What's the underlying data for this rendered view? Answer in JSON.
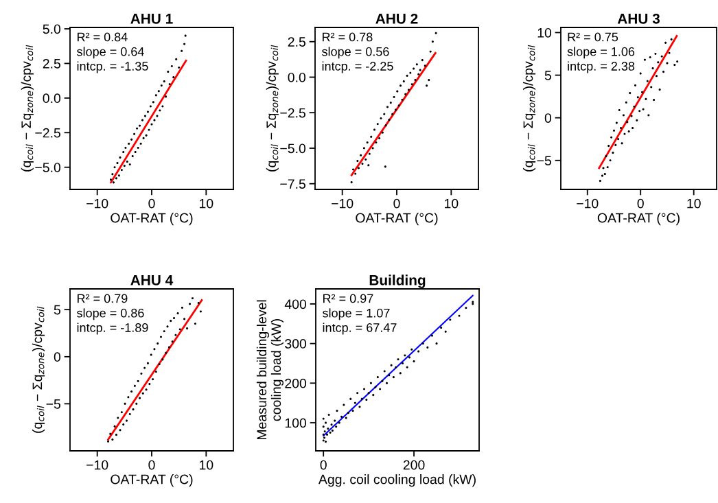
{
  "chart_data": [
    {
      "type": "scatter",
      "title": "AHU 1",
      "xlabel": "OAT-RAT (°C)",
      "ylabel": "(q$_{coil}$ − Σq$_{zone}$)/cpv$_{coil}$",
      "xlim": [
        -15,
        15
      ],
      "xticks": [
        -10,
        0,
        10
      ],
      "ylim": [
        -6.6,
        5.1
      ],
      "yticks": [
        {
          "value": -5,
          "label": "−5.0"
        },
        {
          "value": -2.5,
          "label": "−2.5"
        },
        {
          "value": 0,
          "label": "0.0"
        },
        2.5,
        {
          "value": 5,
          "label": "5.0"
        }
      ],
      "grid": false,
      "annotations": [
        "R² = 0.84",
        "slope = 0.64",
        "intcp. = -1.35"
      ],
      "series": [
        {
          "marker": "circle",
          "color": "#000000",
          "x": [
            -7.5,
            -7.2,
            -7,
            -6.8,
            -6.5,
            -6.3,
            -6,
            -5.8,
            -5.5,
            -5.2,
            -5,
            -4.8,
            -4.5,
            -4.2,
            -4,
            -3.7,
            -3.5,
            -3.2,
            -3,
            -2.7,
            -2.5,
            -2.2,
            -2,
            -1.7,
            -1.5,
            -1.2,
            -1,
            -0.7,
            -0.5,
            -0.2,
            0,
            0.3,
            0.5,
            0.8,
            1,
            1.3,
            1.5,
            1.8,
            2,
            2.3,
            2.6,
            3,
            3.3,
            3.7,
            4,
            4.5,
            5,
            5.5,
            6,
            6.2
          ],
          "values": [
            -5.9,
            -5.5,
            -6.1,
            -5.0,
            -5.8,
            -4.7,
            -5.6,
            -4.3,
            -5.2,
            -3.9,
            -4.9,
            -3.6,
            -4.6,
            -3.3,
            -4.8,
            -3.0,
            -4.2,
            -2.6,
            -3.9,
            -2.2,
            -3.6,
            -2.0,
            -3.3,
            -1.6,
            -2.9,
            -1.3,
            -2.7,
            -1.0,
            -2.3,
            -0.6,
            -1.9,
            -0.3,
            -1.6,
            0.2,
            -1.3,
            0.5,
            -0.9,
            0.9,
            -0.6,
            1.2,
            0.1,
            1.9,
            1.0,
            2.3,
            1.5,
            2.8,
            2.2,
            3.4,
            3.9,
            4.5
          ]
        },
        {
          "type": "line",
          "color": "#ff0000",
          "x": [
            -7.5,
            6.3
          ],
          "values": [
            -6.1,
            2.7
          ]
        }
      ]
    },
    {
      "type": "scatter",
      "title": "AHU 2",
      "xlabel": "OAT-RAT (°C)",
      "ylabel": "(q$_{coil}$ − Σq$_{zone}$)/cpv$_{coil}$",
      "xlim": [
        -15,
        15
      ],
      "xticks": [
        -10,
        0,
        10
      ],
      "ylim": [
        -7.9,
        3.5
      ],
      "yticks": [
        {
          "value": -7.5,
          "label": "−7.5"
        },
        {
          "value": -5,
          "label": "−5.0"
        },
        {
          "value": -2.5,
          "label": "−2.5"
        },
        {
          "value": 0,
          "label": "0.0"
        },
        2.5
      ],
      "grid": false,
      "annotations": [
        "R² = 0.78",
        "slope = 0.56",
        "intcp. = -2.25"
      ],
      "series": [
        {
          "marker": "circle",
          "color": "#000000",
          "x": [
            -8.3,
            -8,
            -7.6,
            -7.2,
            -7,
            -6.6,
            -6.3,
            -6,
            -5.7,
            -5.4,
            -5,
            -4.7,
            -4.4,
            -4.1,
            -3.8,
            -3.5,
            -3.2,
            -2.9,
            -2.6,
            -2.3,
            -2,
            -1.7,
            -1.4,
            -1.1,
            -0.8,
            -0.5,
            -0.2,
            0.1,
            0.4,
            0.7,
            1,
            1.3,
            1.6,
            1.9,
            2.2,
            2.5,
            2.8,
            3.1,
            3.4,
            3.7,
            4,
            4.3,
            4.7,
            5.2,
            5.5,
            5.9,
            6.2,
            6.6,
            7.2,
            -2.1,
            -5.2
          ],
          "values": [
            -7.4,
            -6.5,
            -6.8,
            -5.9,
            -6.4,
            -5.5,
            -6.1,
            -5.0,
            -5.8,
            -4.6,
            -5.4,
            -4.2,
            -5.0,
            -3.7,
            -4.6,
            -3.3,
            -4.3,
            -2.9,
            -3.9,
            -2.6,
            -3.4,
            -2.1,
            -3.0,
            -1.8,
            -2.6,
            -1.4,
            -2.3,
            -1.0,
            -2.0,
            -0.6,
            -1.6,
            -0.3,
            -1.2,
            0.1,
            -0.9,
            0.3,
            -0.5,
            0.6,
            -0.2,
            0.9,
            0.2,
            0.5,
            1.2,
            0.8,
            -0.6,
            -0.2,
            1.8,
            2.5,
            3.1,
            -6.3,
            -6.2
          ]
        },
        {
          "type": "line",
          "color": "#ff0000",
          "x": [
            -8.3,
            7.1
          ],
          "values": [
            -6.9,
            1.7
          ]
        }
      ]
    },
    {
      "type": "scatter",
      "title": "AHU 3",
      "xlabel": "OAT-RAT (°C)",
      "ylabel": "(q$_{coil}$ − Σq$_{zone}$)/cpv$_{coil}$",
      "xlim": [
        -15,
        14.3
      ],
      "xticks": [
        -10,
        0,
        10
      ],
      "ylim": [
        -8.4,
        10.6
      ],
      "yticks": [
        -5,
        0,
        5,
        10
      ],
      "grid": false,
      "annotations": [
        "R² = 0.75",
        "slope = 1.06",
        "intcp. = 2.38"
      ],
      "series": [
        {
          "marker": "circle",
          "color": "#000000",
          "x": [
            -7.6,
            -7.2,
            -7,
            -6.7,
            -6.5,
            -6.2,
            -6,
            -5.7,
            -5.5,
            -5.2,
            -5,
            -4.7,
            -4.5,
            -4.2,
            -4,
            -3.7,
            -3.5,
            -3.2,
            -3,
            -2.7,
            -2.5,
            -2.2,
            -2,
            -1.7,
            -1.5,
            -1.2,
            -1,
            -0.7,
            -0.5,
            -0.2,
            0,
            0.3,
            0.5,
            0.8,
            1,
            1.3,
            1.5,
            1.8,
            2,
            2.3,
            2.5,
            2.8,
            3,
            3.3,
            3.6,
            4,
            4.3,
            4.7,
            5,
            5.4,
            5.8,
            6.4,
            6.9
          ],
          "values": [
            -7.4,
            -6.8,
            -5.9,
            -6.6,
            -4.5,
            -5.8,
            -3.3,
            -5.0,
            -2.3,
            -4.1,
            -1.5,
            -3.2,
            -0.6,
            -2.5,
            0.9,
            -1.2,
            -3.0,
            0.3,
            -1.9,
            1.8,
            -0.5,
            -1.6,
            2.9,
            0.2,
            -1.2,
            1.3,
            3.8,
            -0.3,
            2.4,
            0.8,
            5.2,
            3.0,
            1.0,
            6.8,
            2.2,
            4.3,
            0.3,
            7.1,
            3.6,
            5.8,
            2.1,
            7.5,
            4.9,
            6.5,
            3.3,
            7.2,
            5.4,
            8.8,
            6.4,
            7.6,
            9.2,
            6.2,
            6.6
          ]
        },
        {
          "type": "line",
          "color": "#ff0000",
          "x": [
            -7.8,
            6.8
          ],
          "values": [
            -5.9,
            9.6
          ]
        }
      ]
    },
    {
      "type": "scatter",
      "title": "AHU 4",
      "xlabel": "OAT-RAT (°C)",
      "ylabel": "(q$_{coil}$ − Σq$_{zone}$)/cpv$_{coil}$",
      "xlim": [
        -15,
        15
      ],
      "xticks": [
        -10,
        0,
        10
      ],
      "ylim": [
        -10,
        7.2
      ],
      "yticks": [
        -5,
        0,
        5
      ],
      "grid": false,
      "annotations": [
        "R² = 0.79",
        "slope = 0.86",
        "intcp. = -1.89"
      ],
      "series": [
        {
          "marker": "circle",
          "color": "#000000",
          "x": [
            -8,
            -7.6,
            -7.2,
            -6.8,
            -6.5,
            -6.2,
            -5.8,
            -5.5,
            -5.2,
            -4.9,
            -4.6,
            -4.3,
            -4,
            -3.7,
            -3.4,
            -3.1,
            -2.8,
            -2.5,
            -2.2,
            -1.9,
            -1.6,
            -1.3,
            -1,
            -0.7,
            -0.4,
            -0.1,
            0.2,
            0.5,
            0.8,
            1.1,
            1.4,
            1.7,
            2,
            2.3,
            2.6,
            2.9,
            3.2,
            3.5,
            3.8,
            4.1,
            4.4,
            4.8,
            5.2,
            5.6,
            6,
            6.5,
            7,
            7.5,
            8,
            8.6,
            9
          ],
          "values": [
            -9.0,
            -8.2,
            -8.8,
            -7.4,
            -8.3,
            -6.5,
            -7.8,
            -5.9,
            -7.2,
            -5.0,
            -6.8,
            -4.3,
            -6.1,
            -3.7,
            -5.6,
            -3.1,
            -5.0,
            -2.6,
            -4.4,
            -1.8,
            -3.9,
            -1.2,
            -3.5,
            -0.7,
            -2.9,
            0.2,
            -2.4,
            0.8,
            -1.6,
            1.4,
            -0.8,
            2.1,
            -0.3,
            2.7,
            0.4,
            3.2,
            1.0,
            3.8,
            1.6,
            4.1,
            2.3,
            4.6,
            2.9,
            5.2,
            4.0,
            3.0,
            5.6,
            6.2,
            3.5,
            5.7,
            4.8
          ]
        },
        {
          "type": "line",
          "color": "#ff0000",
          "x": [
            -8,
            9.2
          ],
          "values": [
            -8.8,
            6.0
          ]
        }
      ]
    },
    {
      "type": "scatter",
      "title": "Building",
      "xlabel": "Agg. coil cooling load (kW)",
      "ylabel": "Measured building-level\ncooling load (kW)",
      "xlim": [
        -17,
        344
      ],
      "xticks": [
        0,
        200
      ],
      "ylim": [
        29,
        438
      ],
      "yticks": [
        100,
        200,
        300,
        400
      ],
      "grid": false,
      "annotations": [
        "R² = 0.97",
        "slope = 1.07",
        "intcp. = 67.47"
      ],
      "series": [
        {
          "marker": "circle",
          "color": "#000000",
          "x": [
            0,
            0,
            0,
            0,
            2,
            3,
            5,
            5,
            8,
            10,
            12,
            15,
            18,
            20,
            25,
            28,
            30,
            35,
            40,
            45,
            50,
            55,
            60,
            65,
            70,
            75,
            80,
            85,
            90,
            95,
            100,
            105,
            110,
            115,
            120,
            125,
            130,
            135,
            140,
            145,
            150,
            155,
            160,
            165,
            170,
            175,
            180,
            185,
            190,
            195,
            200,
            210,
            220,
            230,
            240,
            250,
            260,
            270,
            280,
            300,
            315,
            330,
            330
          ],
          "values": [
            55,
            70,
            90,
            110,
            62,
            78,
            100,
            52,
            70,
            85,
            120,
            75,
            95,
            80,
            105,
            90,
            130,
            100,
            115,
            145,
            112,
            125,
            160,
            130,
            150,
            175,
            140,
            160,
            185,
            158,
            175,
            200,
            170,
            190,
            215,
            185,
            205,
            230,
            200,
            220,
            245,
            215,
            240,
            260,
            225,
            250,
            270,
            240,
            265,
            285,
            255,
            280,
            300,
            290,
            320,
            300,
            340,
            330,
            360,
            370,
            390,
            405,
            400
          ]
        },
        {
          "type": "line",
          "color": "#0000ff",
          "x": [
            0,
            330
          ],
          "values": [
            67,
            421
          ]
        }
      ]
    }
  ]
}
